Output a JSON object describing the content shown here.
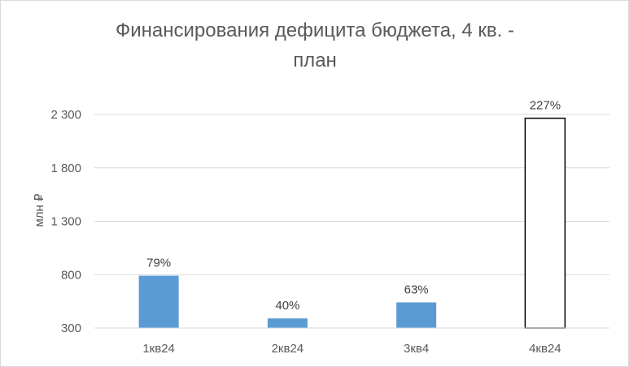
{
  "chart_data": {
    "type": "bar",
    "title": "Финансирования дефицита бюджета, 4 кв. -\nплан",
    "xlabel": "",
    "ylabel": "млн ₽",
    "categories": [
      "1кв24",
      "2кв24",
      "3кв4",
      "4кв24"
    ],
    "values": [
      790,
      390,
      540,
      2265
    ],
    "data_labels": [
      "79%",
      "40%",
      "63%",
      "227%"
    ],
    "bar_styles": [
      "filled",
      "filled",
      "filled",
      "outline"
    ],
    "ylim": [
      300,
      2300
    ],
    "yticks": [
      300,
      800,
      1300,
      1800,
      2300
    ],
    "ytick_labels": [
      "300",
      "800",
      "1 300",
      "1 800",
      "2 300"
    ],
    "grid": true,
    "legend": "none",
    "colors": {
      "bar_fill": "#5b9bd5",
      "outline_bar_stroke": "#000000",
      "grid": "#d9d9d9",
      "text": "#595959"
    }
  }
}
